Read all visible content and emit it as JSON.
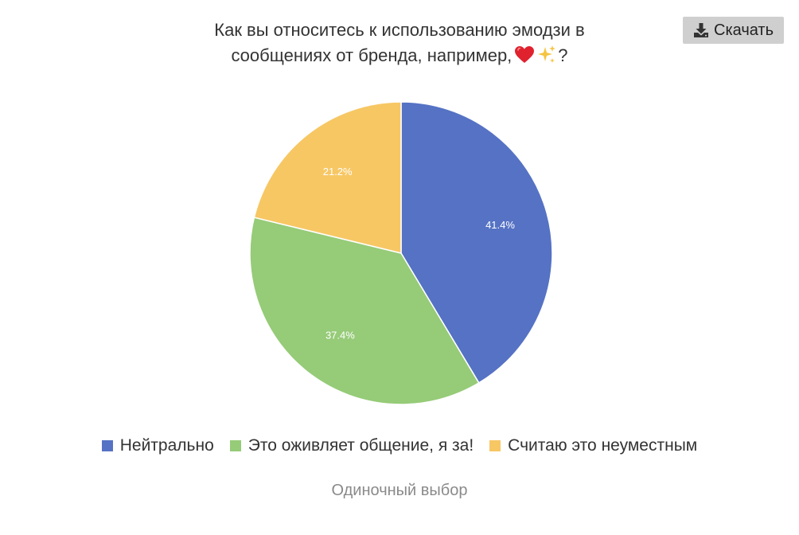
{
  "title_line1": "Как вы относитесь к использованию эмодзи в",
  "title_line2": "сообщениях от бренда, например,",
  "title_end": "?",
  "title_icons": [
    "red-heart-icon",
    "sparkles-icon"
  ],
  "download": {
    "label": "Скачать",
    "icon": "download-icon"
  },
  "footer": "Одиночный выбор",
  "chart_data": {
    "type": "pie",
    "title": "Как вы относитесь к использованию эмодзи в сообщениях от бренда, например, ❤️✨?",
    "legend_position": "bottom",
    "slices": [
      {
        "label": "Нейтрально",
        "value": 41.4,
        "display": "41.4%",
        "color": "#5572c4"
      },
      {
        "label": "Это оживляет общение, я за!",
        "value": 37.4,
        "display": "37.4%",
        "color": "#96cb78"
      },
      {
        "label": "Считаю это неуместным",
        "value": 21.2,
        "display": "21.2%",
        "color": "#f7c764"
      }
    ]
  }
}
